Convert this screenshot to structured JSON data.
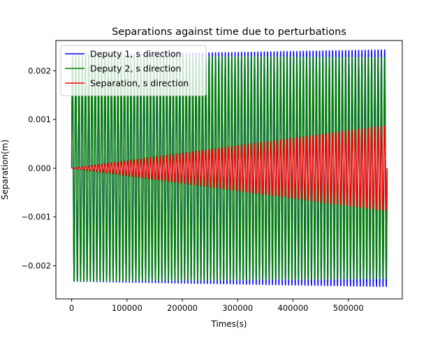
{
  "chart_data": {
    "type": "line",
    "title": "Separations against time due to perturbations",
    "xlabel": "Times(s)",
    "ylabel": "Separation(m)",
    "xlim": [
      -28500,
      597500
    ],
    "ylim": [
      -0.00268,
      0.00262
    ],
    "xticks": [
      0,
      100000,
      200000,
      300000,
      400000,
      500000
    ],
    "xtick_labels": [
      "0",
      "100000",
      "200000",
      "300000",
      "400000",
      "500000"
    ],
    "yticks": [
      -0.002,
      -0.001,
      0.0,
      0.001,
      0.002
    ],
    "ytick_labels": [
      "−0.002",
      "−0.001",
      "0.000",
      "0.001",
      "0.002"
    ],
    "grid": false,
    "legend_position": "top-left",
    "oscillation": {
      "t_start": 0,
      "t_end": 570000,
      "cycles": 97
    },
    "series": [
      {
        "name": "Deputy 1, s direction",
        "color": "#0000ff",
        "envelope": [
          {
            "t": 0,
            "amplitude": 0.00232
          },
          {
            "t": 570000,
            "amplitude": 0.00243
          }
        ]
      },
      {
        "name": "Deputy 2, s direction",
        "color": "#008000",
        "envelope": [
          {
            "t": 0,
            "amplitude": 0.00232
          },
          {
            "t": 570000,
            "amplitude": 0.00227
          }
        ]
      },
      {
        "name": "Separation, s direction",
        "color": "#ff0000",
        "envelope": [
          {
            "t": 0,
            "amplitude": 0.0
          },
          {
            "t": 570000,
            "amplitude": 0.00088
          }
        ]
      }
    ]
  }
}
